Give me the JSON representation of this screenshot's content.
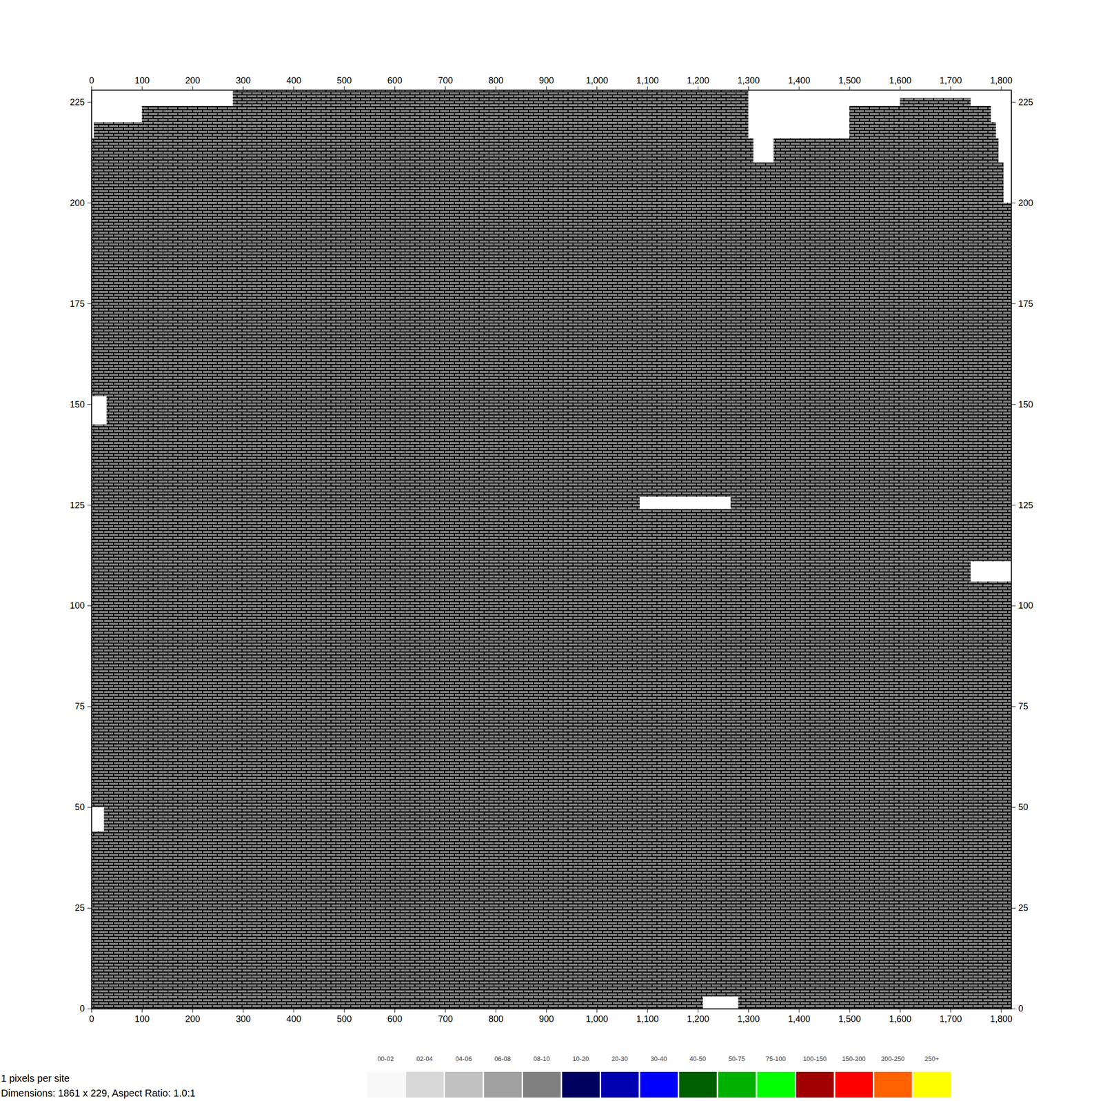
{
  "chart_data": {
    "type": "heatmap",
    "annotations": [
      "1 pixels per site",
      "Dimensions: 1861 x 229, Aspect Ratio: 1.0:1"
    ],
    "xlim": [
      0,
      1820
    ],
    "ylim": [
      0,
      228
    ],
    "xticks": [
      0,
      100,
      200,
      300,
      400,
      500,
      600,
      700,
      800,
      900,
      1000,
      1100,
      1200,
      1300,
      1400,
      1500,
      1600,
      1700,
      1800
    ],
    "yticks": [
      0,
      25,
      50,
      75,
      100,
      125,
      150,
      175,
      200,
      225
    ],
    "cells": [
      {
        "x0": 0,
        "x1": 1210,
        "y0": 0,
        "y1": 3,
        "class": "08-10"
      },
      {
        "x0": 1280,
        "x1": 1820,
        "y0": 0,
        "y1": 3,
        "class": "08-10"
      },
      {
        "x0": 0,
        "x1": 1820,
        "y0": 3,
        "y1": 44,
        "class": "08-10"
      },
      {
        "x0": 25,
        "x1": 1820,
        "y0": 44,
        "y1": 50,
        "class": "08-10"
      },
      {
        "x0": 0,
        "x1": 1820,
        "y0": 50,
        "y1": 106,
        "class": "08-10"
      },
      {
        "x0": 0,
        "x1": 1740,
        "y0": 106,
        "y1": 111,
        "class": "08-10"
      },
      {
        "x0": 0,
        "x1": 1820,
        "y0": 111,
        "y1": 124,
        "class": "08-10"
      },
      {
        "x0": 0,
        "x1": 1085,
        "y0": 124,
        "y1": 127,
        "class": "08-10"
      },
      {
        "x0": 1265,
        "x1": 1820,
        "y0": 124,
        "y1": 127,
        "class": "08-10"
      },
      {
        "x0": 0,
        "x1": 1820,
        "y0": 127,
        "y1": 145,
        "class": "08-10"
      },
      {
        "x0": 30,
        "x1": 1820,
        "y0": 145,
        "y1": 152,
        "class": "08-10"
      },
      {
        "x0": 0,
        "x1": 1820,
        "y0": 152,
        "y1": 200,
        "class": "08-10"
      },
      {
        "x0": 0,
        "x1": 1805,
        "y0": 200,
        "y1": 210,
        "class": "08-10"
      },
      {
        "x0": 0,
        "x1": 1310,
        "y0": 210,
        "y1": 216,
        "class": "08-10"
      },
      {
        "x0": 1350,
        "x1": 1795,
        "y0": 210,
        "y1": 216,
        "class": "08-10"
      },
      {
        "x0": 5,
        "x1": 1300,
        "y0": 216,
        "y1": 220,
        "class": "08-10"
      },
      {
        "x0": 1500,
        "x1": 1790,
        "y0": 216,
        "y1": 220,
        "class": "08-10"
      },
      {
        "x0": 100,
        "x1": 1300,
        "y0": 220,
        "y1": 224,
        "class": "08-10"
      },
      {
        "x0": 1500,
        "x1": 1780,
        "y0": 220,
        "y1": 224,
        "class": "08-10"
      },
      {
        "x0": 280,
        "x1": 1300,
        "y0": 224,
        "y1": 228,
        "class": "08-10"
      },
      {
        "x0": 1600,
        "x1": 1740,
        "y0": 224,
        "y1": 226,
        "class": "08-10"
      }
    ],
    "color_bar": [
      {
        "label": "00-02",
        "color": "#f8f8f8"
      },
      {
        "label": "02-04",
        "color": "#d8d8d8"
      },
      {
        "label": "04-06",
        "color": "#c0c0c0"
      },
      {
        "label": "06-08",
        "color": "#a0a0a0"
      },
      {
        "label": "08-10",
        "color": "#808080"
      },
      {
        "label": "10-20",
        "color": "#000060"
      },
      {
        "label": "20-30",
        "color": "#0000b0"
      },
      {
        "label": "30-40",
        "color": "#0000ff"
      },
      {
        "label": "40-50",
        "color": "#006000"
      },
      {
        "label": "50-75",
        "color": "#00b000"
      },
      {
        "label": "75-100",
        "color": "#00ff00"
      },
      {
        "label": "100-150",
        "color": "#a00000"
      },
      {
        "label": "150-200",
        "color": "#ff0000"
      },
      {
        "label": "200-250",
        "color": "#ff6000"
      },
      {
        "label": "250+",
        "color": "#ffff00"
      }
    ]
  }
}
